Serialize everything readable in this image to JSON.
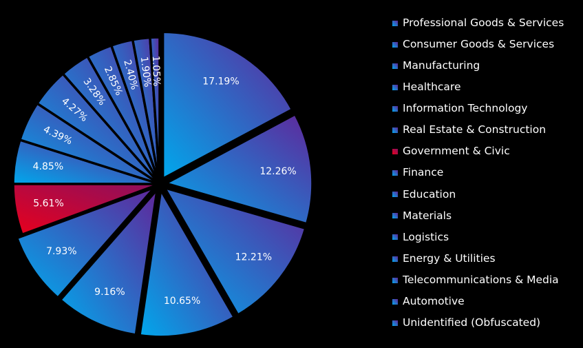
{
  "chart_data": {
    "type": "pie",
    "categories": [
      "Professional Goods & Services",
      "Consumer Goods & Services",
      "Manufacturing",
      "Healthcare",
      "Information Technology",
      "Real Estate & Construction",
      "Government & Civic",
      "Finance",
      "Education",
      "Materials",
      "Logistics",
      "Energy & Utilities",
      "Telecommunications & Media",
      "Automotive",
      "Unidentified (Obfuscated)"
    ],
    "slices": [
      {
        "category": "Professional Goods & Services",
        "value": 17.19,
        "label": "17.19%",
        "exploded": true
      },
      {
        "category": "Consumer Goods & Services",
        "value": 12.26,
        "label": "12.26%",
        "exploded": true
      },
      {
        "category": "Manufacturing",
        "value": 12.21,
        "label": "12.21%",
        "exploded": true
      },
      {
        "category": "Healthcare",
        "value": 10.65,
        "label": "10.65%",
        "exploded": true
      },
      {
        "category": "Information Technology",
        "value": 9.16,
        "label": "9.16%",
        "exploded": true
      },
      {
        "category": "Real Estate & Construction",
        "value": 7.93,
        "label": "7.93%",
        "exploded": true
      },
      {
        "category": "Government & Civic",
        "value": 5.61,
        "label": "5.61%",
        "exploded": false
      },
      {
        "category": "Finance",
        "value": 4.85,
        "label": "4.85%",
        "exploded": false
      },
      {
        "category": "Education",
        "value": 4.39,
        "label": "4.39%",
        "exploded": false
      },
      {
        "category": "Materials",
        "value": 4.27,
        "label": "4.27%",
        "exploded": false
      },
      {
        "category": "Logistics",
        "value": 3.28,
        "label": "3.28%",
        "exploded": false
      },
      {
        "category": "Energy & Utilities",
        "value": 2.85,
        "label": "2.85%",
        "exploded": false
      },
      {
        "category": "Telecommunications & Media",
        "value": 2.4,
        "label": "2.40%",
        "exploded": false
      },
      {
        "category": "Automotive",
        "value": 1.9,
        "label": "1.90%",
        "exploded": false
      },
      {
        "category": "Unidentified (Obfuscated)",
        "value": 1.05,
        "label": "1.05%",
        "exploded": false
      }
    ],
    "title": "",
    "legend_position": "right",
    "background_color": "#000000",
    "colors": {
      "gradient_light": "#00a8ec",
      "gradient_dark": "#60269a",
      "highlight_light": "#e8001c",
      "highlight_dark": "#8a1060",
      "highlighted_category": "Government & Civic"
    }
  }
}
